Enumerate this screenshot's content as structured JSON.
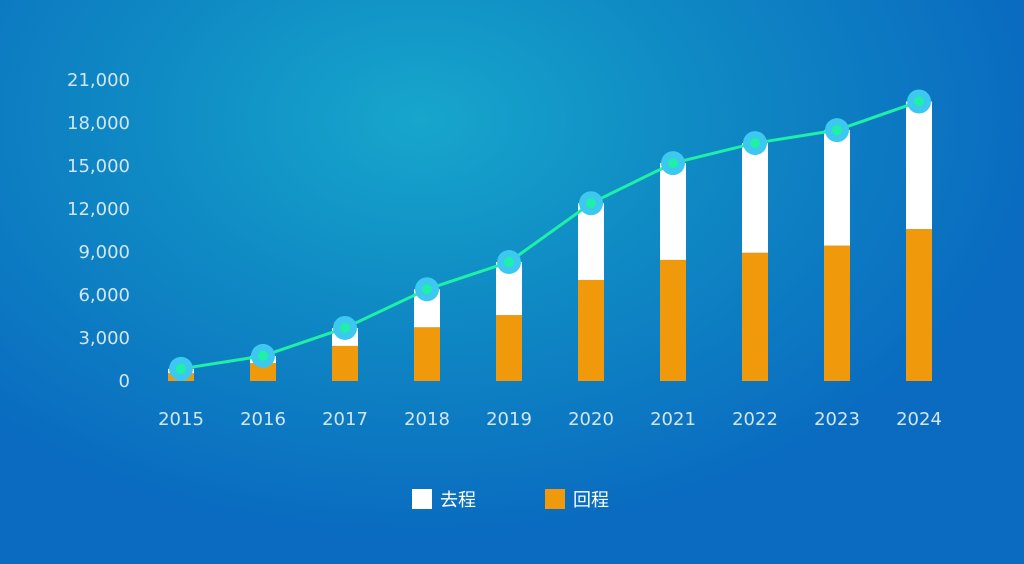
{
  "chart_data": {
    "type": "bar",
    "stacked": true,
    "categories": [
      "2015",
      "2016",
      "2017",
      "2018",
      "2019",
      "2020",
      "2021",
      "2022",
      "2023",
      "2024"
    ],
    "series": [
      {
        "name": "回程",
        "type": "bar",
        "color": "#f0990a",
        "values": [
          550,
          1250,
          2450,
          3750,
          4600,
          7050,
          8450,
          8950,
          9450,
          10600
        ]
      },
      {
        "name": "去程",
        "type": "bar",
        "color": "#ffffff",
        "values": [
          300,
          500,
          1250,
          2650,
          3700,
          5350,
          6750,
          7650,
          8050,
          8900
        ]
      },
      {
        "type": "line",
        "color": "#1ef0a8",
        "values": [
          850,
          1750,
          3700,
          6400,
          8300,
          12400,
          15200,
          16600,
          17500,
          19500
        ]
      }
    ],
    "y_ticks": [
      "0",
      "3,000",
      "6,000",
      "9,000",
      "12,000",
      "15,000",
      "18,000",
      "21,000"
    ],
    "ylim": [
      0,
      21000
    ],
    "legend_position": "bottom-center",
    "grid": false
  }
}
